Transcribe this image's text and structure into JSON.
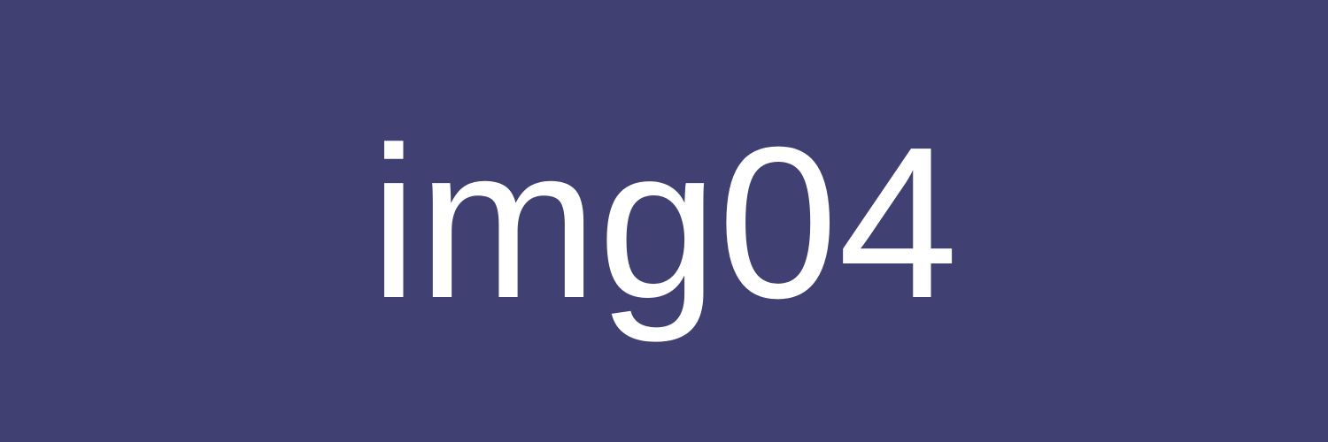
{
  "image": {
    "text": "img04",
    "background_color": "#404172",
    "text_color": "#ffffff"
  }
}
